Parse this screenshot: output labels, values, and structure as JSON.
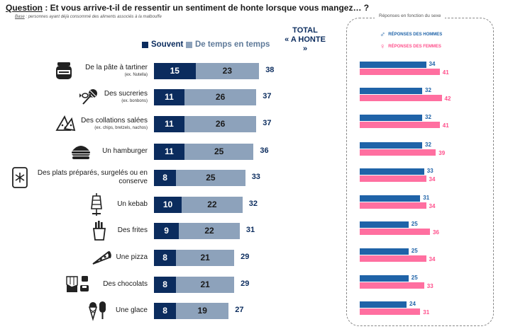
{
  "header": {
    "question_label": "Question",
    "question_text": " : Et vous arrive-t-il de ressentir un sentiment de honte lorsque vous mangez… ?",
    "base_label": "Base",
    "base_text": " : personnes ayant déjà consommé des aliments associés à la malbouffe"
  },
  "legend": {
    "souvent": "Souvent",
    "temps": "De temps en temps"
  },
  "total_header": {
    "line1": "TOTAL",
    "line2": "« A HONTE »"
  },
  "gender_panel": {
    "title": "Réponses en fonction du sexe",
    "men_label": "RÉPONSES DES HOMMES",
    "women_label": "RÉPONSES DES FEMMES",
    "men_symbol": "♂",
    "women_symbol": "♀"
  },
  "colors": {
    "souvent": "#0b2c5e",
    "temps": "#8da2bb",
    "hommes": "#1f63a8",
    "femmes": "#ff6fa0"
  },
  "chart_data": [
    {
      "type": "bar",
      "orientation": "horizontal",
      "stacked": true,
      "title": "",
      "categories": [
        {
          "label": "De la pâte à tartiner",
          "sub": "(ex. Nutella)",
          "icon": "spread-jar-icon"
        },
        {
          "label": "Des sucreries",
          "sub": "(ex. bonbons)",
          "icon": "candy-icon"
        },
        {
          "label": "Des collations salées",
          "sub": "(ex. chips, bretzels, nachos)",
          "icon": "nachos-icon"
        },
        {
          "label": "Un hamburger",
          "sub": "",
          "icon": "hamburger-icon"
        },
        {
          "label": "Des plats préparés, surgelés ou en conserve",
          "sub": "",
          "icon": "frozen-meal-icon"
        },
        {
          "label": "Un kebab",
          "sub": "",
          "icon": "kebab-icon"
        },
        {
          "label": "Des frites",
          "sub": "",
          "icon": "fries-icon"
        },
        {
          "label": "Une pizza",
          "sub": "",
          "icon": "pizza-icon"
        },
        {
          "label": "Des chocolats",
          "sub": "",
          "icon": "chocolate-icon"
        },
        {
          "label": "Une glace",
          "sub": "",
          "icon": "ice-cream-icon"
        }
      ],
      "series": [
        {
          "name": "Souvent",
          "values": [
            15,
            11,
            11,
            11,
            8,
            10,
            9,
            8,
            8,
            8
          ]
        },
        {
          "name": "De temps en temps",
          "values": [
            23,
            26,
            26,
            25,
            25,
            22,
            22,
            21,
            21,
            19
          ]
        }
      ],
      "totals": [
        38,
        37,
        37,
        36,
        33,
        32,
        31,
        29,
        29,
        27
      ]
    },
    {
      "type": "bar",
      "orientation": "horizontal",
      "title": "Réponses en fonction du sexe",
      "series": [
        {
          "name": "RÉPONSES DES HOMMES",
          "values": [
            34,
            32,
            32,
            32,
            33,
            31,
            25,
            25,
            25,
            24
          ]
        },
        {
          "name": "RÉPONSES DES FEMMES",
          "values": [
            41,
            42,
            41,
            39,
            34,
            34,
            36,
            34,
            33,
            31
          ]
        }
      ]
    }
  ]
}
